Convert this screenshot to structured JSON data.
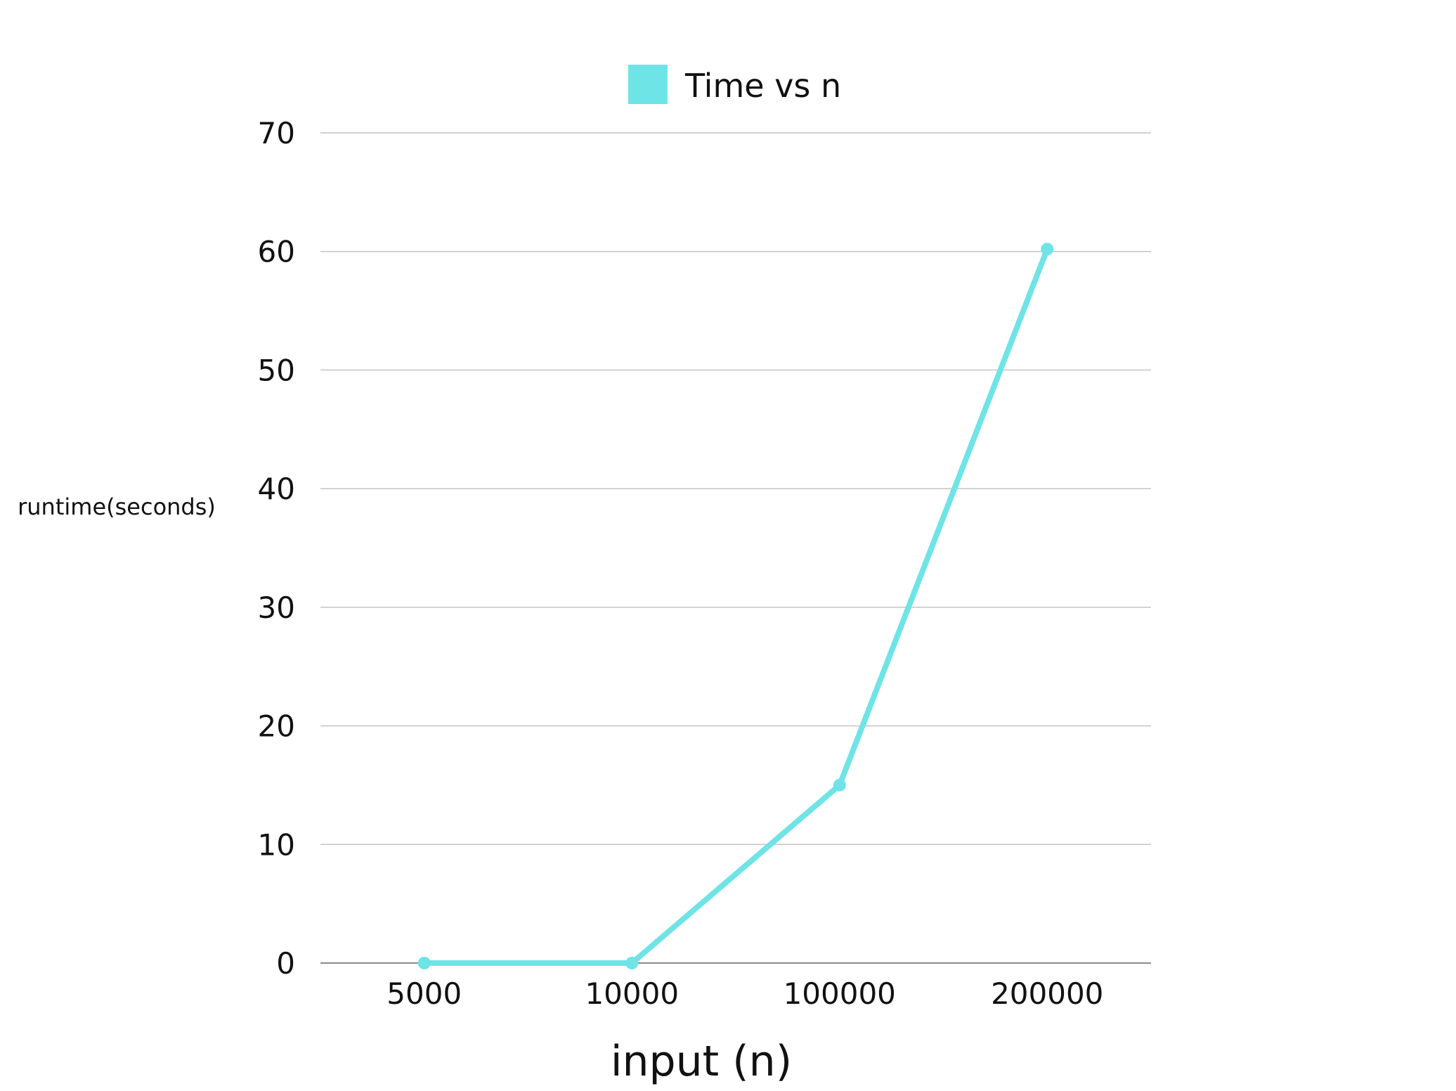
{
  "chart_data": {
    "type": "line",
    "title": "",
    "xlabel": "input (n)",
    "ylabel": "runtime(seconds)",
    "categories": [
      "5000",
      "10000",
      "100000",
      "200000"
    ],
    "series": [
      {
        "name": "Time vs n",
        "values": [
          0,
          0,
          15,
          60.2
        ],
        "color": "#6ee4e6"
      }
    ],
    "ylim": [
      0,
      70
    ],
    "yticks": [
      0,
      10,
      20,
      30,
      40,
      50,
      60,
      70
    ],
    "grid": true,
    "legend_position": "top-center",
    "colors": {
      "grid": "#c4c4c4",
      "baseline": "#8a8a8a",
      "text": "#111111"
    }
  }
}
